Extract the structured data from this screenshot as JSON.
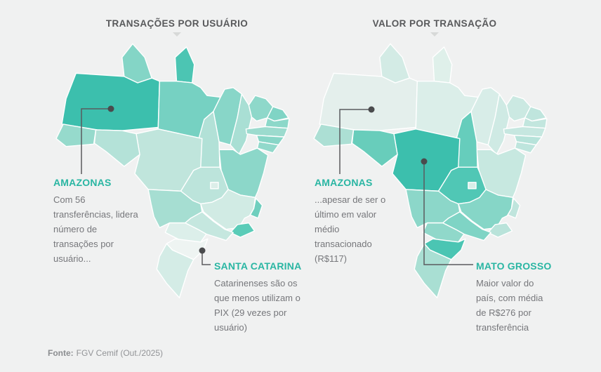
{
  "background_color": "#f0f1f1",
  "accent_color": "#2ab6a3",
  "connector_color": "#5a5b5e",
  "maps": [
    {
      "id": "transacoes-por-usuario",
      "title": "TRANSAÇÕES POR USUÁRIO",
      "annotations": [
        {
          "state": "AMAZONAS",
          "text": "Com 56 transferências, lidera número de transações por usuário..."
        },
        {
          "state": "SANTA CATARINA",
          "text": "Catarinenses são os que menos utilizam o PIX (29 vezes por usuário)"
        }
      ],
      "state_colors": {
        "AM": "#3cbfad",
        "AP": "#4cc5b3",
        "RJ": "#5accb8",
        "ES": "#6fcfbe",
        "PA": "#76d1c2",
        "RN": "#80d4c5",
        "RR": "#84d5c6",
        "AL": "#88d6c7",
        "MA": "#88d6c8",
        "BA": "#8cd7c9",
        "PB": "#8cd8c9",
        "CE": "#8ed8ca",
        "SE": "#92d9cb",
        "AC": "#96dacc",
        "PE": "#9cdbce",
        "MS": "#a6ded2",
        "PI": "#a9dfd4",
        "TO": "#b2e1d7",
        "RO": "#b4e2d8",
        "GO": "#bce4db",
        "MT": "#c0e5dc",
        "SP": "#c5e7df",
        "MG": "#d1ebe4",
        "RS": "#d4ece6",
        "DF": "#dceee9",
        "PR": "#dcefea",
        "SC": "#eef4f2"
      }
    },
    {
      "id": "valor-por-transacao",
      "title": "VALOR POR TRANSAÇÃO",
      "annotations": [
        {
          "state": "AMAZONAS",
          "text": "...apesar de ser o último em valor médio transacionado (R$117)"
        },
        {
          "state": "MATO GROSSO",
          "text": "Maior valor do país, com média de R$276 por transferência"
        }
      ],
      "state_colors": {
        "MT": "#3cbfad",
        "SC": "#4bc5b3",
        "GO": "#50c7b5",
        "TO": "#66cdbc",
        "RO": "#68cdbb",
        "SP": "#7fd4c5",
        "MG": "#86d6c7",
        "MS": "#8cd7c9",
        "PR": "#90d8ca",
        "RS": "#a9dfd3",
        "AC": "#acdfd4",
        "AL": "#b7e3da",
        "RJ": "#b9e3da",
        "SE": "#bee5dd",
        "RN": "#bfe5dd",
        "ES": "#c0e5dd",
        "PB": "#c2e6de",
        "PE": "#c6e7e0",
        "BA": "#c7e8e0",
        "CE": "#cbe9e2",
        "PI": "#cfeae4",
        "RR": "#d3ebe5",
        "DF": "#d8eee8",
        "MA": "#d8ede8",
        "PA": "#dbeee9",
        "AP": "#dff0ea",
        "AM": "#e4efec"
      }
    }
  ],
  "footer": {
    "label": "Fonte:",
    "text": "FGV Cemif (Out./2025)"
  },
  "chart_data": [
    {
      "type": "choropleth",
      "title": "TRANSAÇÕES POR USUÁRIO",
      "region": "Brazil (states)",
      "unit": "transferências por usuário",
      "legend": "darker teal = more transactions per user",
      "annotated_values": [
        {
          "state": "Amazonas",
          "value": 56,
          "note": "Com 56 transferências, lidera número de transações por usuário..."
        },
        {
          "state": "Santa Catarina",
          "value": 29,
          "note": "Catarinenses são os que menos utilizam o PIX (29 vezes por usuário)"
        }
      ]
    },
    {
      "type": "choropleth",
      "title": "VALOR POR TRANSAÇÃO",
      "region": "Brazil (states)",
      "unit": "R$ por transferência",
      "legend": "darker teal = higher average value per transaction",
      "annotated_values": [
        {
          "state": "Mato Grosso",
          "value": 276,
          "note": "Maior valor do país, com média de R$276 por transferência"
        },
        {
          "state": "Amazonas",
          "value": 117,
          "note": "...apesar de ser o último em valor médio transacionado (R$117)"
        }
      ]
    }
  ]
}
